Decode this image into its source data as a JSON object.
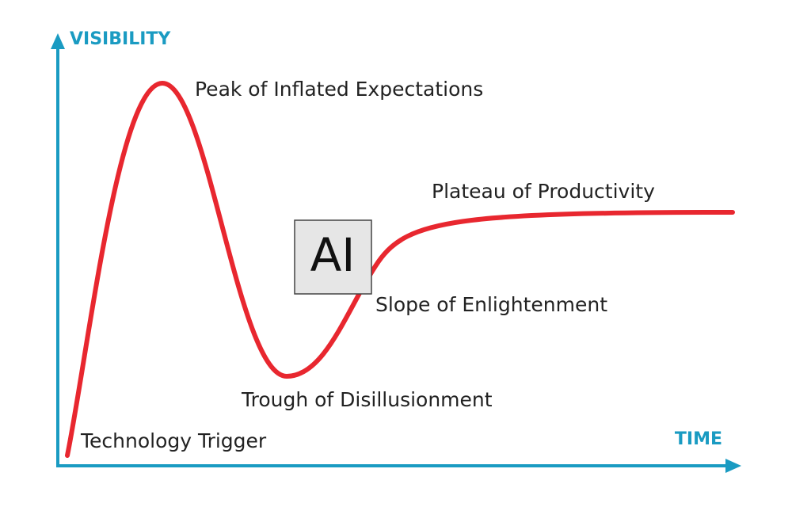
{
  "axes": {
    "y_label": "VISIBILITY",
    "x_label": "TIME"
  },
  "phases": [
    "Technology Trigger",
    "Peak of Inflated Expectations",
    "Trough of Disillusionment",
    "Slope of Enlightenment",
    "Plateau of Productivity"
  ],
  "marker": {
    "label": "AI"
  }
}
